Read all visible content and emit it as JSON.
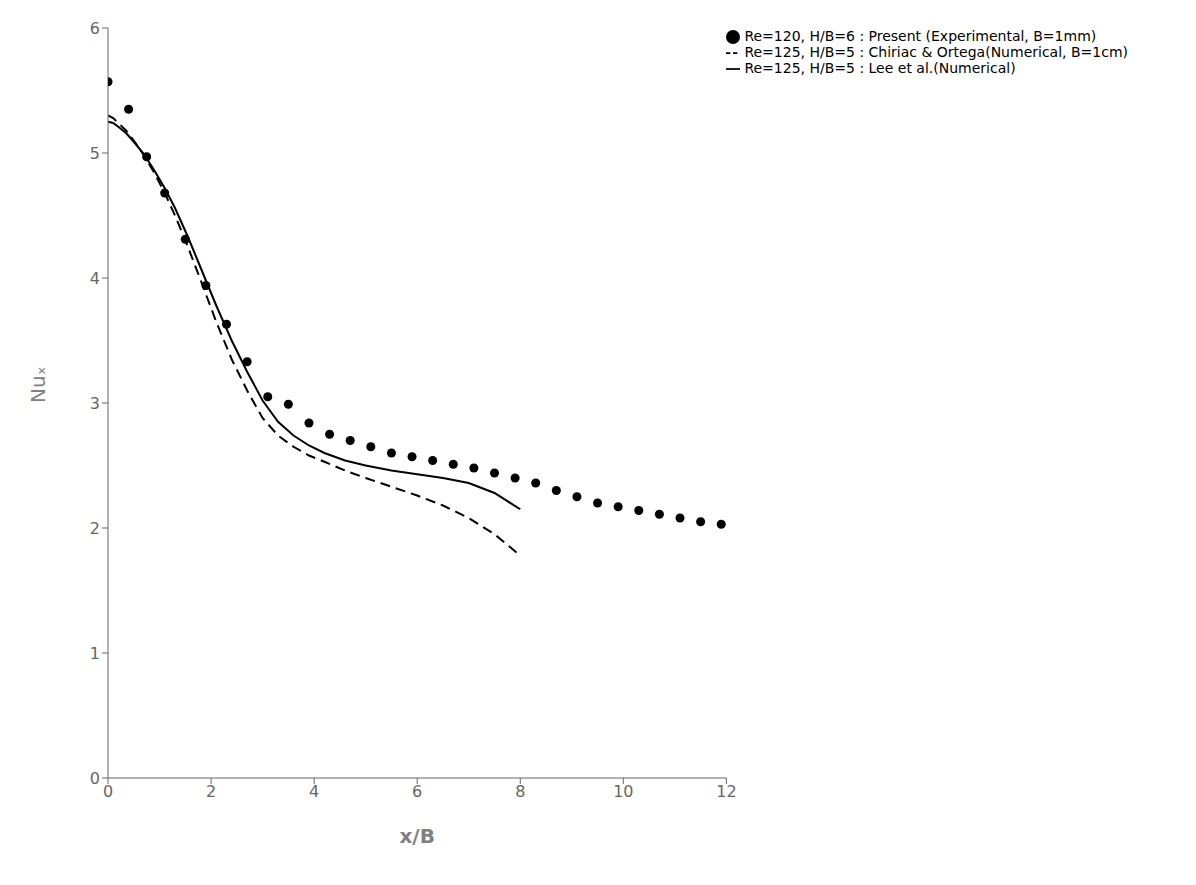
{
  "chart_data": {
    "type": "line",
    "xlabel": "x/B",
    "ylabel": "Nuₓ",
    "xlim": [
      0,
      12
    ],
    "ylim": [
      0,
      6
    ],
    "xticks": [
      0,
      2,
      4,
      6,
      8,
      10,
      12
    ],
    "yticks": [
      0,
      1,
      2,
      3,
      4,
      5,
      6
    ],
    "grid": false,
    "legend": "upper right",
    "series": [
      {
        "name": "Re=125, H/B=5 : Chiriac & Ortega(Numerical, B=1cm)",
        "type": "line",
        "line_style": "dashed",
        "color": "#000000",
        "x": [
          0.0,
          0.1,
          0.2,
          0.35,
          0.5,
          0.7,
          0.9,
          1.1,
          1.3,
          1.55,
          1.8,
          2.1,
          2.4,
          2.7,
          3.0,
          3.3,
          3.6,
          3.9,
          4.2,
          4.6,
          5.0,
          5.5,
          6.0,
          6.5,
          7.0,
          7.5,
          8.0
        ],
        "values": [
          5.3,
          5.28,
          5.24,
          5.18,
          5.1,
          4.98,
          4.84,
          4.68,
          4.5,
          4.25,
          3.98,
          3.65,
          3.35,
          3.1,
          2.88,
          2.74,
          2.65,
          2.58,
          2.53,
          2.46,
          2.4,
          2.33,
          2.26,
          2.18,
          2.08,
          1.95,
          1.78
        ]
      },
      {
        "name": "Re=125, H/B=5 : Lee et al.(Numerical)",
        "type": "line",
        "line_style": "solid",
        "color": "#000000",
        "x": [
          0.0,
          0.1,
          0.2,
          0.35,
          0.5,
          0.7,
          0.9,
          1.1,
          1.3,
          1.55,
          1.8,
          2.1,
          2.4,
          2.7,
          3.0,
          3.3,
          3.6,
          3.9,
          4.2,
          4.6,
          5.0,
          5.5,
          6.0,
          6.5,
          7.0,
          7.5,
          8.0
        ],
        "values": [
          5.25,
          5.24,
          5.21,
          5.16,
          5.09,
          4.99,
          4.86,
          4.72,
          4.56,
          4.33,
          4.08,
          3.78,
          3.5,
          3.25,
          3.02,
          2.85,
          2.74,
          2.66,
          2.6,
          2.54,
          2.5,
          2.46,
          2.43,
          2.4,
          2.36,
          2.28,
          2.15
        ]
      },
      {
        "name": "Re=120, H/B=6 : Present (Experimental, B=1mm)",
        "type": "scatter",
        "marker": "circle",
        "color": "#000000",
        "x": [
          0.0,
          0.4,
          0.75,
          1.1,
          1.5,
          1.9,
          2.3,
          2.7,
          3.1,
          3.5,
          3.9,
          4.3,
          4.7,
          5.1,
          5.5,
          5.9,
          6.3,
          6.7,
          7.1,
          7.5,
          7.9,
          8.3,
          8.7,
          9.1,
          9.5,
          9.9,
          10.3,
          10.7,
          11.1,
          11.5,
          11.9
        ],
        "values": [
          5.57,
          5.35,
          4.97,
          4.68,
          4.31,
          3.94,
          3.63,
          3.33,
          3.05,
          2.99,
          2.84,
          2.75,
          2.7,
          2.65,
          2.6,
          2.57,
          2.54,
          2.51,
          2.48,
          2.44,
          2.4,
          2.36,
          2.3,
          2.25,
          2.2,
          2.17,
          2.14,
          2.11,
          2.08,
          2.05,
          2.03
        ]
      }
    ]
  }
}
